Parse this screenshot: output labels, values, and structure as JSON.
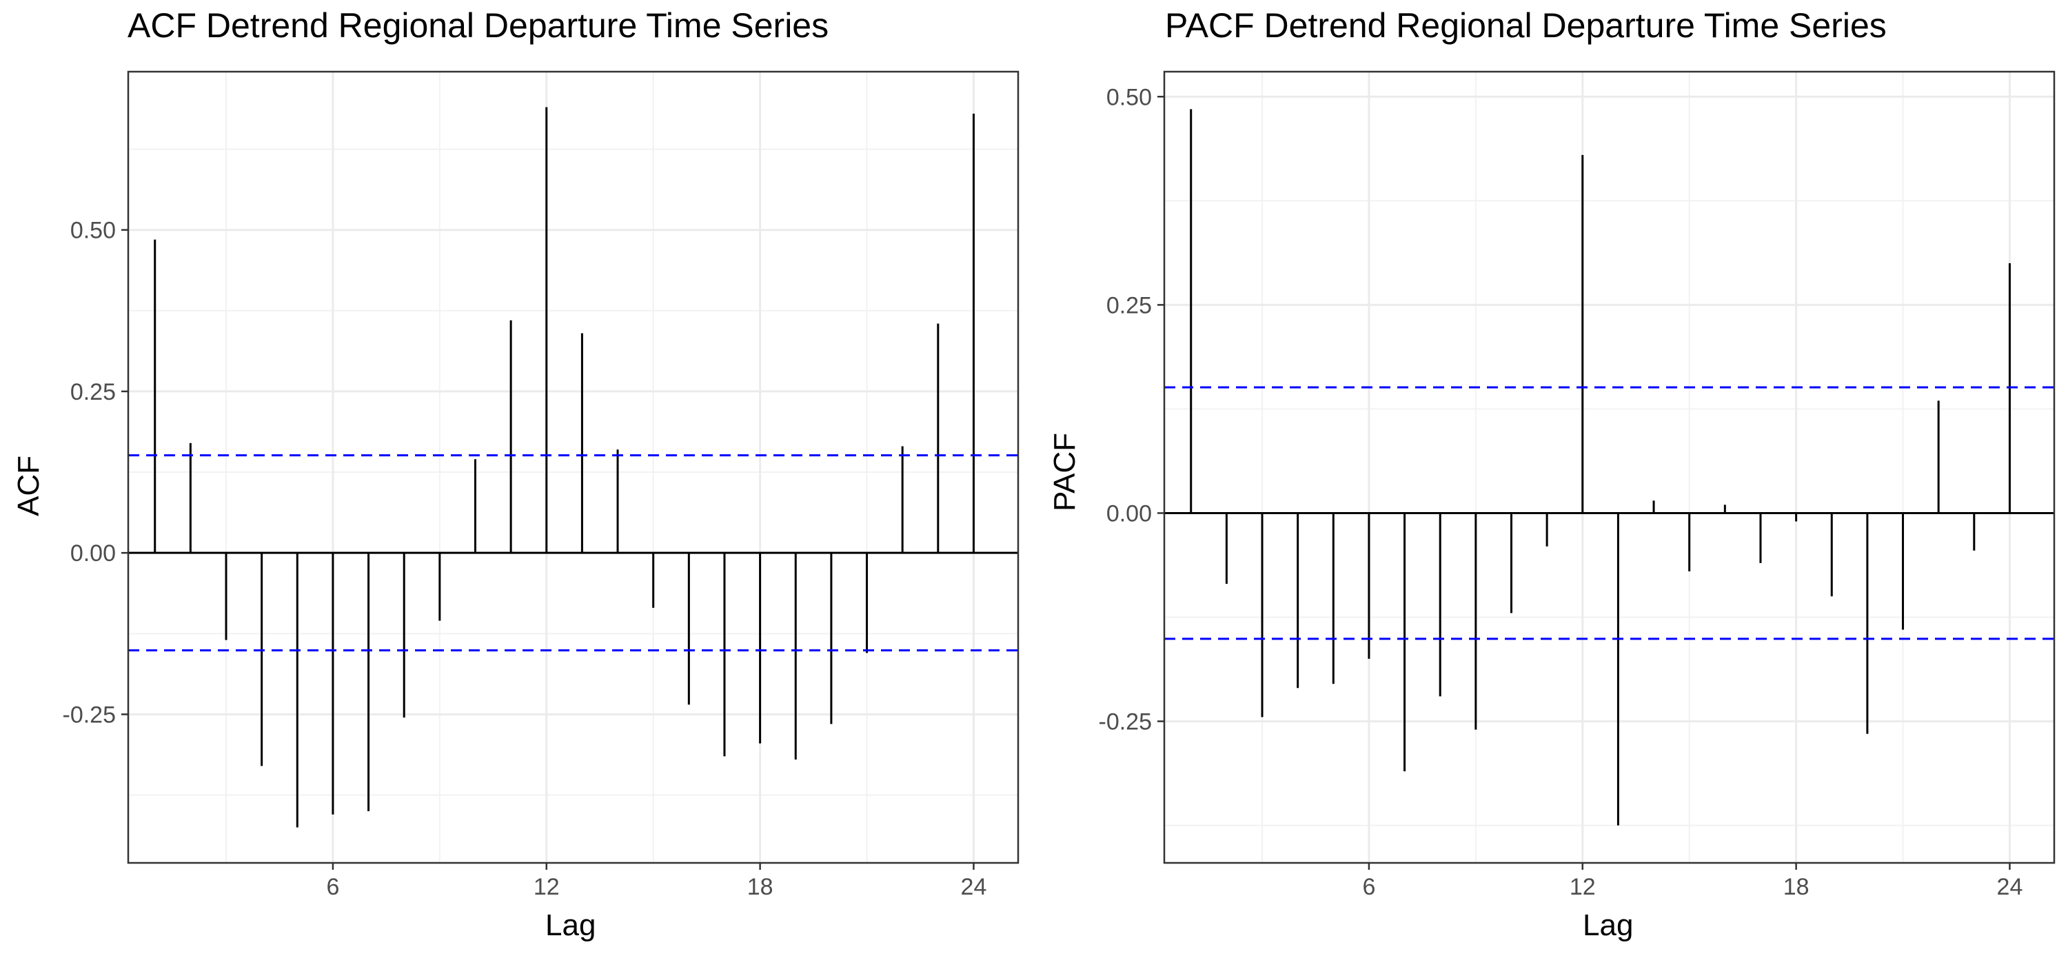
{
  "chart_data": [
    {
      "type": "bar",
      "title": "ACF Detrend Regional Departure Time Series",
      "xlabel": "Lag",
      "ylabel": "ACF",
      "x": [
        1,
        2,
        3,
        4,
        5,
        6,
        7,
        8,
        9,
        10,
        11,
        12,
        13,
        14,
        15,
        16,
        17,
        18,
        19,
        20,
        21,
        22,
        23,
        24
      ],
      "values": [
        0.485,
        0.17,
        -0.135,
        -0.33,
        -0.425,
        -0.405,
        -0.4,
        -0.255,
        -0.105,
        0.145,
        0.36,
        0.69,
        0.34,
        0.16,
        -0.085,
        -0.235,
        -0.315,
        -0.295,
        -0.32,
        -0.265,
        -0.155,
        0.165,
        0.355,
        0.68
      ],
      "confidence_band": 0.151,
      "xlim": [
        0.25,
        25.25
      ],
      "ylim": [
        -0.48,
        0.745
      ],
      "xticks": [
        6,
        12,
        18,
        24
      ],
      "xtick_labels": [
        "6",
        "12",
        "18",
        "24"
      ],
      "yticks": [
        -0.25,
        0.0,
        0.25,
        0.5
      ],
      "ytick_labels": [
        "-0.25",
        "0.00",
        "0.25",
        "0.50"
      ],
      "grid": true,
      "colors": {
        "bars": "#000000",
        "confidence": "#0000ff",
        "grid": "#ebebeb"
      }
    },
    {
      "type": "bar",
      "title": "PACF Detrend Regional Departure Time Series",
      "xlabel": "Lag",
      "ylabel": "PACF",
      "x": [
        1,
        2,
        3,
        4,
        5,
        6,
        7,
        8,
        9,
        10,
        11,
        12,
        13,
        14,
        15,
        16,
        17,
        18,
        19,
        20,
        21,
        22,
        23,
        24
      ],
      "values": [
        0.485,
        -0.085,
        -0.245,
        -0.21,
        -0.205,
        -0.175,
        -0.31,
        -0.22,
        -0.26,
        -0.12,
        -0.04,
        0.43,
        -0.375,
        0.015,
        -0.07,
        0.01,
        -0.06,
        -0.01,
        -0.1,
        -0.265,
        -0.14,
        0.135,
        -0.045,
        0.3
      ],
      "confidence_band": 0.151,
      "xlim": [
        0.25,
        25.25
      ],
      "ylim": [
        -0.42,
        0.53
      ],
      "xticks": [
        6,
        12,
        18,
        24
      ],
      "xtick_labels": [
        "6",
        "12",
        "18",
        "24"
      ],
      "yticks": [
        -0.25,
        0.0,
        0.25,
        0.5
      ],
      "ytick_labels": [
        "-0.25",
        "0.00",
        "0.25",
        "0.50"
      ],
      "grid": true,
      "colors": {
        "bars": "#000000",
        "confidence": "#0000ff",
        "grid": "#ebebeb"
      }
    }
  ]
}
